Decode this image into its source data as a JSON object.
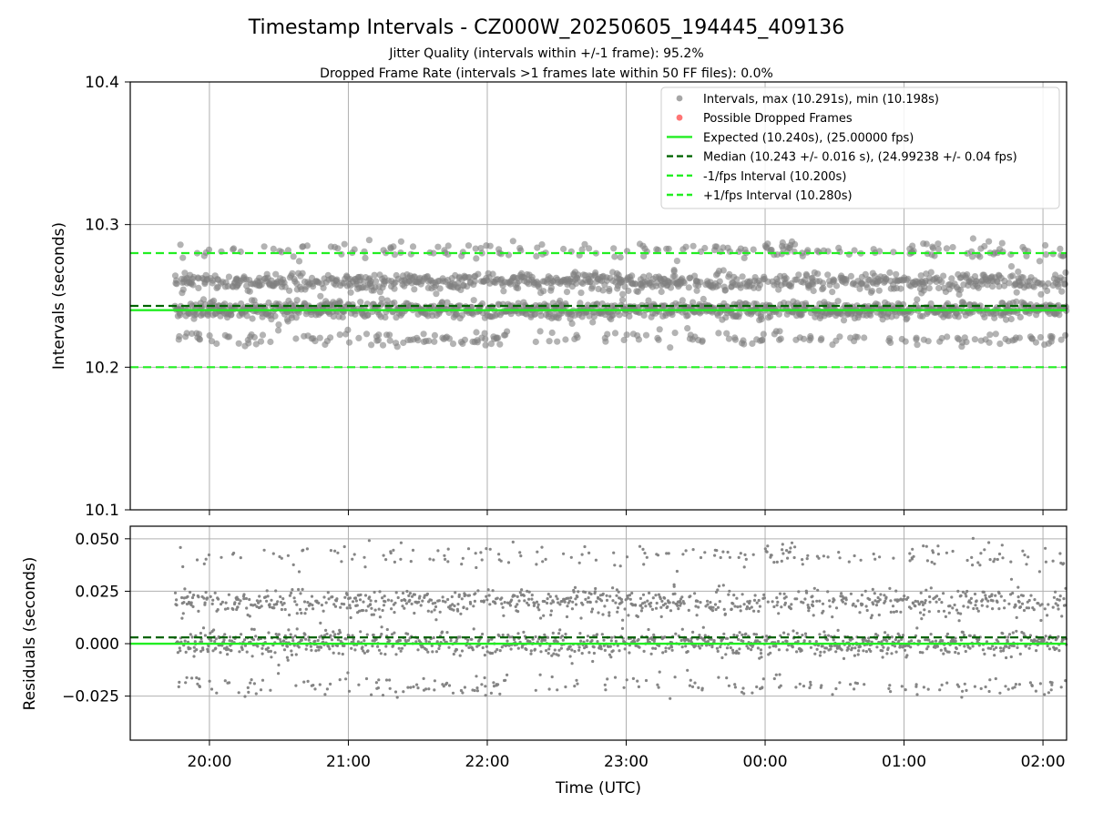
{
  "figure": {
    "title": "Timestamp Intervals - CZ000W_20250605_194445_409136",
    "subtitle1": "Jitter Quality (intervals within +/-1 frame): 95.2%",
    "subtitle2": "Dropped Frame Rate (intervals >1 frames late within 50 FF files): 0.0%"
  },
  "colors": {
    "points": "#808080",
    "dropped": "#ff3b3b",
    "expected": "#22ee22",
    "median": "#006400",
    "band": "#22ee22",
    "grid": "#b0b0b0"
  },
  "chart_data": [
    {
      "type": "scatter",
      "ylabel": "Intervals (seconds)",
      "ylim": [
        10.1,
        10.4
      ],
      "yticks": [
        10.1,
        10.2,
        10.3,
        10.4
      ],
      "ytick_labels": [
        "10.1",
        "10.2",
        "10.3",
        "10.4"
      ],
      "xlim_hours": [
        19.43,
        26.17
      ],
      "grid": true,
      "legend_position": "top-right",
      "legend": [
        "Intervals, max (10.291s), min (10.198s)",
        "Possible Dropped Frames",
        "Expected (10.240s), (25.00000 fps)",
        "Median (10.243 +/- 0.016 s), (24.99238 +/- 0.04 fps)",
        "-1/fps Interval (10.200s)",
        "+1/fps Interval (10.280s)"
      ],
      "series": {
        "time_range_hours": [
          19.75,
          26.17
        ],
        "clusters": [
          {
            "level": 10.24,
            "spread": 0.003,
            "weight": 0.47
          },
          {
            "level": 10.26,
            "spread": 0.003,
            "weight": 0.36
          },
          {
            "level": 10.22,
            "spread": 0.0025,
            "weight": 0.09
          },
          {
            "level": 10.282,
            "spread": 0.003,
            "weight": 0.08
          }
        ],
        "max": 10.291,
        "min": 10.198,
        "count": 2250
      },
      "lines": {
        "expected": 10.24,
        "median": 10.243,
        "minus_one_fps": 10.2,
        "plus_one_fps": 10.28
      }
    },
    {
      "type": "scatter",
      "ylabel": "Residuals (seconds)",
      "xlabel": "Time (UTC)",
      "ylim": [
        -0.046,
        0.056
      ],
      "yticks": [
        -0.025,
        0.0,
        0.025,
        0.05
      ],
      "ytick_labels": [
        "−0.025",
        "0.000",
        "0.025",
        "0.050"
      ],
      "xlim_hours": [
        19.43,
        26.17
      ],
      "xticks_hours": [
        20,
        21,
        22,
        23,
        24,
        25,
        26
      ],
      "xtick_labels": [
        "20:00",
        "21:00",
        "22:00",
        "23:00",
        "00:00",
        "01:00",
        "02:00"
      ],
      "grid": true,
      "lines": {
        "zero": 0.0,
        "median_offset": 0.003
      }
    }
  ]
}
